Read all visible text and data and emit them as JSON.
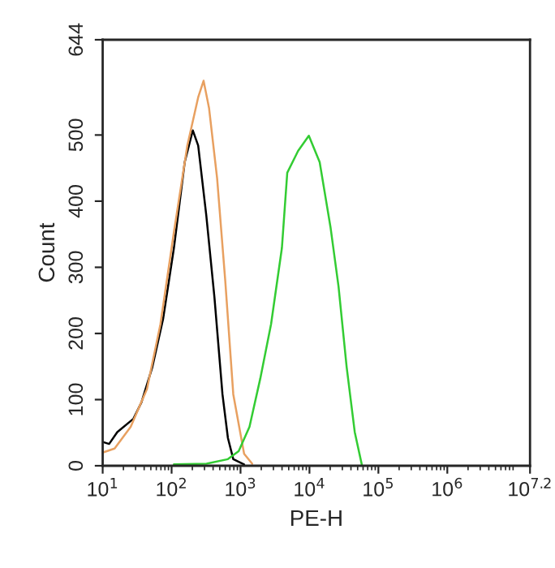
{
  "chart_data": {
    "type": "line",
    "xlabel": "PE-H",
    "ylabel": "Count",
    "log": "x",
    "xlim": [
      10,
      15848932
    ],
    "ylim": [
      0,
      644
    ],
    "xticks": [
      {
        "value": 10,
        "label": "10$^{1}$"
      },
      {
        "value": 100,
        "label": "10$^{2}$"
      },
      {
        "value": 1000,
        "label": "10$^{3}$"
      },
      {
        "value": 10000,
        "label": "10$^{4}$"
      },
      {
        "value": 100000,
        "label": "10$^{5}$"
      },
      {
        "value": 1000000,
        "label": "10$^{6}$"
      },
      {
        "value": 15848932,
        "label": "10$^{7.2}$"
      }
    ],
    "yticks": [
      0,
      100,
      200,
      300,
      400,
      500,
      644
    ],
    "grid": false,
    "marker": "none",
    "line_style": "solid",
    "series": [
      {
        "color": "#000000",
        "x": [
          10,
          12.4,
          16.3,
          27.9,
          36.6,
          52.5,
          75.3,
          108,
          155,
          203,
          243,
          319,
          418,
          547,
          656,
          785,
          1127
        ],
        "values": [
          36,
          33,
          51,
          71,
          96,
          149,
          222,
          329,
          459,
          507,
          484,
          378,
          255,
          108,
          42,
          10,
          2
        ]
      },
      {
        "color": "#e8a060",
        "x": [
          10,
          14.9,
          25.5,
          43.9,
          68.9,
          108,
          169,
          243,
          291,
          349,
          457,
          600,
          785,
          1127,
          1476
        ],
        "values": [
          20,
          26,
          59,
          116,
          214,
          353,
          484,
          557,
          582,
          541,
          435,
          280,
          108,
          18,
          3
        ]
      },
      {
        "color": "#33cc33",
        "x": [
          108,
          319,
          656,
          940,
          1349,
          1936,
          2773,
          3981,
          4764,
          6839,
          9795,
          14060,
          20180,
          26420,
          34670,
          45390,
          57410
        ],
        "values": [
          2,
          3,
          10,
          22,
          59,
          132,
          214,
          329,
          443,
          476,
          499,
          459,
          361,
          271,
          149,
          51,
          2
        ]
      }
    ]
  }
}
